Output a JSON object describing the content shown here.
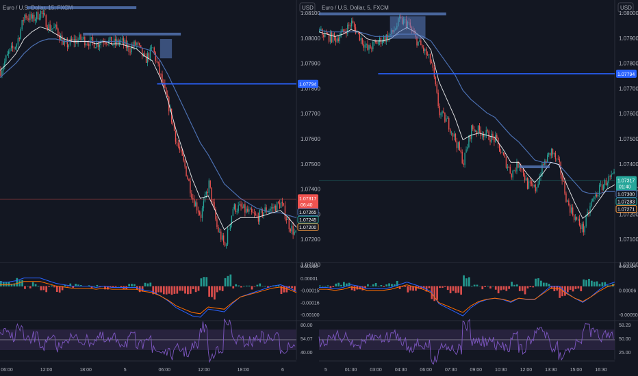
{
  "colors": {
    "bg": "#131722",
    "grid": "#1e222d",
    "text": "#b2b5be",
    "up": "#26a69a",
    "down": "#ef5350",
    "ma_fast": "#ffffff",
    "ma_slow": "#4b6fb0",
    "hline": "#2962ff",
    "zone": "#5b7fc4",
    "macd": "#2962ff",
    "signal": "#ff6d00",
    "rsi": "#7e57c2",
    "rsi_band": "#2a2340"
  },
  "charts": [
    {
      "id": "left",
      "title": "Euro / U.S. Dollar, 15, FXCM",
      "currency_button": "USD",
      "price_ticks": [
        "1.08100",
        "1.08000",
        "1.07900",
        "1.07800",
        "1.07700",
        "1.07600",
        "1.07500",
        "1.07400",
        "1.07300",
        "1.07200",
        "1.07100"
      ],
      "price_range": [
        1.0706,
        1.0813
      ],
      "time_ticks": [
        "06:00",
        "12:00",
        "18:00",
        "5",
        "06:00",
        "12:00",
        "18:00",
        "6"
      ],
      "hline": {
        "value": 1.07794,
        "label": "1.07794"
      },
      "current": {
        "value": 1.07317,
        "label": "1.07317",
        "countdown": "06:40"
      },
      "ma_labels": [
        "1.07265",
        "1.07245",
        "1.07200"
      ],
      "macd_ticks": [
        "0.00050",
        "0.00001",
        "-0.00015",
        "-0.00016",
        "-0.00100"
      ],
      "macd_labels": [
        "0.00001",
        "-0.00015",
        "-0.00016"
      ],
      "rsi_ticks": [
        "80.00",
        "54.07",
        "40.00"
      ],
      "rsi_label": "54.07",
      "path": [
        1.0785,
        1.0792,
        1.0796,
        1.0808,
        1.0806,
        1.0809,
        1.0803,
        1.0802,
        1.0795,
        1.0797,
        1.0798,
        1.0797,
        1.0796,
        1.0798,
        1.0796,
        1.0797,
        1.0794,
        1.0796,
        1.0789,
        1.0794,
        1.0782,
        1.077,
        1.0755,
        1.0745,
        1.0732,
        1.0725,
        1.0738,
        1.072,
        1.0712,
        1.0728,
        1.0728,
        1.0726,
        1.0724,
        1.0727,
        1.0728,
        1.073,
        1.0721,
        1.0716
      ],
      "ma_fast": [
        1.0785,
        1.0788,
        1.0792,
        1.0798,
        1.0801,
        1.0803,
        1.0802,
        1.08,
        1.0798,
        1.0797,
        1.0797,
        1.0797,
        1.0796,
        1.0797,
        1.0796,
        1.0796,
        1.0795,
        1.0794,
        1.0791,
        1.0789,
        1.0782,
        1.0772,
        1.076,
        1.075,
        1.074,
        1.0732,
        1.0733,
        1.0726,
        1.0719,
        1.0722,
        1.0724,
        1.0724,
        1.0724,
        1.0725,
        1.0726,
        1.0727,
        1.0724,
        1.072
      ],
      "ma_slow": [
        1.0782,
        1.0785,
        1.0788,
        1.0792,
        1.0795,
        1.0797,
        1.0798,
        1.0798,
        1.0797,
        1.0797,
        1.0797,
        1.0797,
        1.0797,
        1.0797,
        1.0797,
        1.0797,
        1.0796,
        1.0795,
        1.0794,
        1.0793,
        1.0789,
        1.0783,
        1.0776,
        1.0769,
        1.0762,
        1.0755,
        1.075,
        1.0744,
        1.0738,
        1.0735,
        1.0732,
        1.073,
        1.0728,
        1.0727,
        1.0726,
        1.0726,
        1.0725,
        1.0724
      ],
      "zones": [
        {
          "type": "line",
          "x0": 0.09,
          "x1": 0.46,
          "value": 1.0811
        },
        {
          "type": "line",
          "x0": 0.28,
          "x1": 0.61,
          "value": 1.08
        },
        {
          "type": "box",
          "x0": 0.54,
          "x1": 0.58,
          "v0": 1.079,
          "v1": 1.0798
        }
      ]
    },
    {
      "id": "right",
      "title": "Euro / U.S. Dollar, 5, FXCM",
      "currency_button": "USD",
      "price_ticks": [
        "1.08000",
        "1.07900",
        "1.07800",
        "1.07700",
        "1.07600",
        "1.07500",
        "1.07400",
        "1.07300",
        "1.07200",
        "1.07100",
        "1.07000"
      ],
      "price_range": [
        1.0696,
        1.0811
      ],
      "time_ticks": [
        "5",
        "01:30",
        "03:00",
        "04:30",
        "06:00",
        "07:30",
        "09:00",
        "10:30",
        "12:00",
        "13:30",
        "15:00",
        "16:30"
      ],
      "hline": {
        "value": 1.07794,
        "label": "1.07794"
      },
      "current": {
        "value": 1.07317,
        "label": "1.07317",
        "countdown": "01:40"
      },
      "ma_labels": [
        "1.07300",
        "1.07283",
        "1.07271"
      ],
      "macd_ticks": [
        "0.00014",
        "0.00006",
        "-0.00050"
      ],
      "macd_labels": [
        "0.00014",
        "0.00006"
      ],
      "rsi_ticks": [
        "58.29",
        "50.00",
        "25.00"
      ],
      "rsi_label": "58.29",
      "path": [
        1.0798,
        1.0796,
        1.0795,
        1.0798,
        1.0802,
        1.0796,
        1.079,
        1.0793,
        1.0795,
        1.0797,
        1.0803,
        1.0802,
        1.0795,
        1.079,
        1.0784,
        1.0762,
        1.0758,
        1.075,
        1.074,
        1.0755,
        1.0754,
        1.0752,
        1.075,
        1.0742,
        1.0735,
        1.074,
        1.073,
        1.0728,
        1.0739,
        1.0745,
        1.0738,
        1.0722,
        1.0715,
        1.071,
        1.0722,
        1.0728,
        1.0732,
        1.0734
      ],
      "ma_fast": [
        1.0798,
        1.0797,
        1.0796,
        1.0797,
        1.0799,
        1.0798,
        1.0795,
        1.0794,
        1.0794,
        1.0795,
        1.0798,
        1.08,
        1.0798,
        1.0795,
        1.079,
        1.0776,
        1.0768,
        1.076,
        1.075,
        1.0752,
        1.0753,
        1.0752,
        1.0751,
        1.0746,
        1.074,
        1.074,
        1.0735,
        1.0731,
        1.0735,
        1.074,
        1.0739,
        1.073,
        1.0722,
        1.0715,
        1.0718,
        1.0723,
        1.0728,
        1.073
      ],
      "ma_slow": [
        1.0799,
        1.0798,
        1.0798,
        1.0798,
        1.0798,
        1.0798,
        1.0797,
        1.0796,
        1.0796,
        1.0796,
        1.0797,
        1.0797,
        1.0797,
        1.0796,
        1.0794,
        1.0789,
        1.0784,
        1.0779,
        1.0772,
        1.0768,
        1.0765,
        1.0762,
        1.076,
        1.0756,
        1.0752,
        1.0749,
        1.0745,
        1.0741,
        1.074,
        1.074,
        1.0739,
        1.0735,
        1.0731,
        1.0727,
        1.0726,
        1.0726,
        1.0727,
        1.0727
      ],
      "zones": [
        {
          "type": "line",
          "x0": 0.0,
          "x1": 0.43,
          "value": 1.0806
        },
        {
          "type": "box",
          "x0": 0.24,
          "x1": 0.36,
          "v0": 1.0795,
          "v1": 1.0805
        },
        {
          "type": "line",
          "x0": 0.68,
          "x1": 0.78,
          "value": 1.0738
        }
      ]
    }
  ]
}
